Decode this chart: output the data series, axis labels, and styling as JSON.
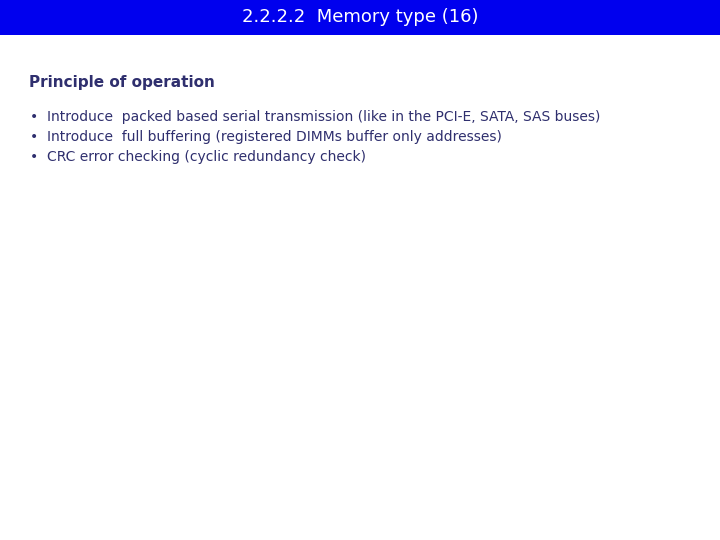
{
  "title": "2.2.2.2  Memory type (16)",
  "title_bg_color": "#0000EE",
  "title_text_color": "#FFFFFF",
  "title_fontsize": 13,
  "section_heading": "Principle of operation",
  "section_heading_color": "#2F2F6E",
  "section_heading_fontsize": 11,
  "bullet_points": [
    "Introduce  packed based serial transmission (like in the PCI-E, SATA, SAS buses)",
    "Introduce  full buffering (registered DIMMs buffer only addresses)",
    "CRC error checking (cyclic redundancy check)"
  ],
  "bullet_fontsize": 10,
  "bullet_color": "#2F2F6E",
  "background_color": "#FFFFFF",
  "fig_width": 7.2,
  "fig_height": 5.4,
  "dpi": 100
}
